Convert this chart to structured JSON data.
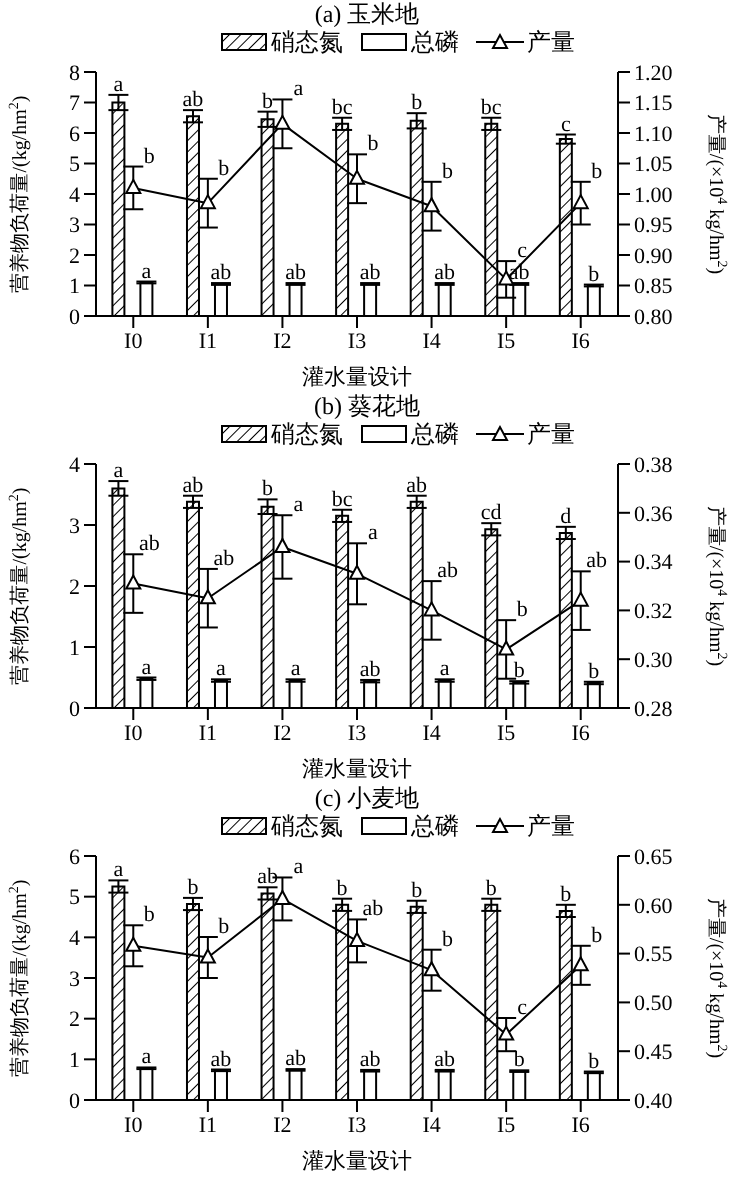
{
  "chart_data": [
    {
      "type": "bar",
      "title": "(a) 玉米地",
      "xlabel": "灌水量设计",
      "ylabel": "营养物负荷量/(kg/hm$^{2}$)",
      "y2label": "产量/(×10$^{4}$ kg/hm$^{2}$)",
      "categories": [
        "I0",
        "I1",
        "I2",
        "I3",
        "I4",
        "I5",
        "I6"
      ],
      "ylim": [
        0,
        8
      ],
      "yticks": [
        0,
        1,
        2,
        3,
        4,
        5,
        6,
        7,
        8
      ],
      "y2lim": [
        0.8,
        1.2
      ],
      "y2ticks": [
        {
          "value": 0.8,
          "label": "0.80"
        },
        {
          "value": 0.85,
          "label": "0.85"
        },
        {
          "value": 0.9,
          "label": "0.90"
        },
        {
          "value": 0.95,
          "label": "0.95"
        },
        {
          "value": 1.0,
          "label": "1.00"
        },
        {
          "value": 1.05,
          "label": "1.05"
        },
        {
          "value": 1.1,
          "label": "1.10"
        },
        {
          "value": 1.15,
          "label": "1.15"
        },
        {
          "value": 1.2,
          "label": "1.20"
        }
      ],
      "legend": "top",
      "marker": "triangle",
      "series": [
        {
          "name": "硝态氮",
          "color": "#000000",
          "values": [
            7.0,
            6.55,
            6.45,
            6.3,
            6.4,
            6.3,
            5.8
          ],
          "errors": [
            0.25,
            0.2,
            0.25,
            0.2,
            0.25,
            0.2,
            0.15
          ],
          "value_labels": [
            "a",
            "ab",
            "b",
            "bc",
            "b",
            "bc",
            "c"
          ]
        },
        {
          "name": "总磷",
          "color": "#ffffff",
          "values": [
            1.1,
            1.05,
            1.05,
            1.05,
            1.05,
            1.05,
            1.0
          ],
          "errors": [
            0.03,
            0.03,
            0.03,
            0.03,
            0.03,
            0.03,
            0.03
          ],
          "value_labels": [
            "a",
            "ab",
            "ab",
            "ab",
            "ab",
            "ab",
            "b"
          ]
        },
        {
          "name": "产量",
          "type": "line",
          "axis": "y2",
          "color": "#000000",
          "values": [
            1.01,
            0.985,
            1.115,
            1.025,
            0.98,
            0.86,
            0.985
          ],
          "errors": [
            0.035,
            0.04,
            0.04,
            0.04,
            0.04,
            0.03,
            0.035
          ],
          "value_labels": [
            "b",
            "b",
            "a",
            "b",
            "b",
            "c",
            "b"
          ]
        }
      ]
    },
    {
      "type": "bar",
      "title": "(b) 葵花地",
      "xlabel": "灌水量设计",
      "ylabel": "营养物负荷量/(kg/hm$^{2}$)",
      "y2label": "产量/(×10$^{4}$ kg/hm$^{2}$)",
      "categories": [
        "I0",
        "I1",
        "I2",
        "I3",
        "I4",
        "I5",
        "I6"
      ],
      "ylim": [
        0,
        4
      ],
      "yticks": [
        0,
        1,
        2,
        3,
        4
      ],
      "y2lim": [
        0.28,
        0.38
      ],
      "y2ticks": [
        {
          "value": 0.28,
          "label": "0.28"
        },
        {
          "value": 0.3,
          "label": "0.30"
        },
        {
          "value": 0.32,
          "label": "0.32"
        },
        {
          "value": 0.34,
          "label": "0.34"
        },
        {
          "value": 0.36,
          "label": "0.36"
        },
        {
          "value": 0.38,
          "label": "0.38"
        }
      ],
      "legend": "top",
      "marker": "triangle",
      "series": [
        {
          "name": "硝态氮",
          "color": "#000000",
          "values": [
            3.6,
            3.38,
            3.3,
            3.15,
            3.38,
            2.93,
            2.87
          ],
          "errors": [
            0.12,
            0.1,
            0.12,
            0.1,
            0.1,
            0.1,
            0.1
          ],
          "value_labels": [
            "a",
            "ab",
            "b",
            "bc",
            "ab",
            "cd",
            "d"
          ]
        },
        {
          "name": "总磷",
          "color": "#ffffff",
          "values": [
            0.48,
            0.45,
            0.45,
            0.44,
            0.45,
            0.42,
            0.41
          ],
          "errors": [
            0.02,
            0.02,
            0.02,
            0.02,
            0.02,
            0.02,
            0.02
          ],
          "value_labels": [
            "a",
            "a",
            "a",
            "ab",
            "a",
            "b",
            "b"
          ]
        },
        {
          "name": "产量",
          "type": "line",
          "axis": "y2",
          "color": "#000000",
          "values": [
            0.331,
            0.325,
            0.346,
            0.335,
            0.32,
            0.304,
            0.324
          ],
          "errors": [
            0.012,
            0.012,
            0.013,
            0.0125,
            0.012,
            0.012,
            0.012
          ],
          "value_labels": [
            "ab",
            "ab",
            "a",
            "a",
            "ab",
            "b",
            "ab"
          ]
        }
      ]
    },
    {
      "type": "bar",
      "title": "(c) 小麦地",
      "xlabel": "灌水量设计",
      "ylabel": "营养物负荷量/(kg/hm$^{2}$)",
      "y2label": "产量/(×10$^{4}$ kg/hm$^{2}$)",
      "categories": [
        "I0",
        "I1",
        "I2",
        "I3",
        "I4",
        "I5",
        "I6"
      ],
      "ylim": [
        0,
        6
      ],
      "yticks": [
        0,
        1,
        2,
        3,
        4,
        5,
        6
      ],
      "y2lim": [
        0.4,
        0.65
      ],
      "y2ticks": [
        {
          "value": 0.4,
          "label": "0.40"
        },
        {
          "value": 0.45,
          "label": "0.45"
        },
        {
          "value": 0.5,
          "label": "0.50"
        },
        {
          "value": 0.55,
          "label": "0.55"
        },
        {
          "value": 0.6,
          "label": "0.60"
        },
        {
          "value": 0.65,
          "label": "0.65"
        }
      ],
      "legend": "top",
      "marker": "triangle",
      "series": [
        {
          "name": "硝态氮",
          "color": "#000000",
          "values": [
            5.25,
            4.82,
            5.08,
            4.8,
            4.75,
            4.8,
            4.65
          ],
          "errors": [
            0.15,
            0.15,
            0.15,
            0.15,
            0.15,
            0.15,
            0.15
          ],
          "value_labels": [
            "a",
            "b",
            "ab",
            "b",
            "b",
            "b",
            "b"
          ]
        },
        {
          "name": "总磷",
          "color": "#ffffff",
          "values": [
            0.78,
            0.73,
            0.74,
            0.72,
            0.72,
            0.71,
            0.68
          ],
          "errors": [
            0.02,
            0.02,
            0.02,
            0.02,
            0.02,
            0.02,
            0.02
          ],
          "value_labels": [
            "a",
            "ab",
            "ab",
            "ab",
            "ab",
            "b",
            "b"
          ]
        },
        {
          "name": "产量",
          "type": "line",
          "axis": "y2",
          "color": "#000000",
          "values": [
            0.558,
            0.546,
            0.606,
            0.563,
            0.533,
            0.467,
            0.538
          ],
          "errors": [
            0.021,
            0.021,
            0.022,
            0.022,
            0.021,
            0.017,
            0.02
          ],
          "value_labels": [
            "b",
            "b",
            "a",
            "ab",
            "b",
            "c",
            "b"
          ]
        }
      ]
    }
  ]
}
